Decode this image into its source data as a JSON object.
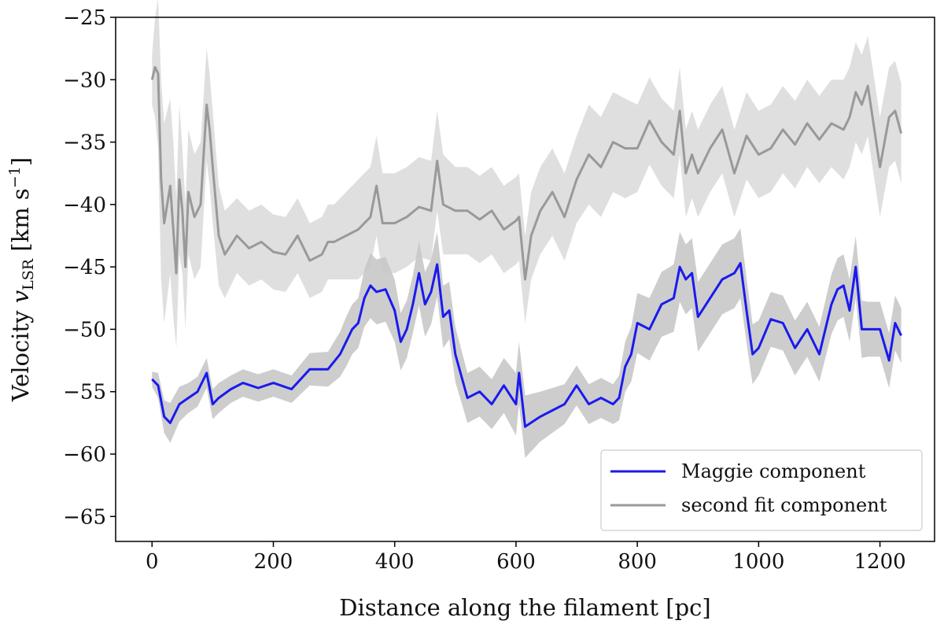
{
  "chart_data": {
    "type": "line",
    "xlabel": "Distance along the filament [pc]",
    "ylabel": {
      "prefix": "Velocity ",
      "var": "v",
      "sub": "LSR",
      "units_open": " [km s",
      "units_exp": "−1",
      "units_close": "]"
    },
    "xlim": [
      -60,
      1290
    ],
    "ylim": [
      -67,
      -25
    ],
    "xticks": [
      0,
      200,
      400,
      600,
      800,
      1000,
      1200
    ],
    "xtick_labels": [
      "0",
      "200",
      "400",
      "600",
      "800",
      "1000",
      "1200"
    ],
    "yticks": [
      -25,
      -30,
      -35,
      -40,
      -45,
      -50,
      -55,
      -60,
      -65
    ],
    "ytick_labels": [
      "−25",
      "−30",
      "−35",
      "−40",
      "−45",
      "−50",
      "−55",
      "−60",
      "−65"
    ],
    "grid": false,
    "legend_position": "lower-right",
    "series": [
      {
        "name": "Maggie component",
        "color": "#1a1aee",
        "band_color": "#c8c8c8",
        "x": [
          0,
          10,
          20,
          30,
          45,
          60,
          75,
          90,
          100,
          110,
          130,
          150,
          175,
          200,
          230,
          260,
          290,
          310,
          320,
          330,
          340,
          350,
          360,
          370,
          385,
          400,
          410,
          420,
          430,
          440,
          450,
          460,
          470,
          480,
          490,
          500,
          520,
          540,
          560,
          580,
          600,
          605,
          615,
          640,
          660,
          680,
          700,
          720,
          740,
          760,
          770,
          780,
          790,
          800,
          820,
          840,
          860,
          870,
          880,
          890,
          900,
          920,
          940,
          960,
          970,
          980,
          990,
          1000,
          1020,
          1040,
          1060,
          1080,
          1100,
          1120,
          1130,
          1140,
          1150,
          1160,
          1170,
          1180,
          1200,
          1215,
          1225,
          1235
        ],
        "y": [
          -54,
          -54.5,
          -57,
          -57.5,
          -56,
          -55.5,
          -55,
          -53.5,
          -56,
          -55.5,
          -54.8,
          -54.3,
          -54.7,
          -54.3,
          -54.8,
          -53.2,
          -53.2,
          -52,
          -51,
          -50,
          -49.5,
          -47.5,
          -46.5,
          -47,
          -46.8,
          -48.5,
          -51,
          -50,
          -48,
          -45.5,
          -48,
          -47,
          -44.8,
          -49,
          -48.5,
          -52,
          -55.5,
          -55,
          -56,
          -54.5,
          -56,
          -53.5,
          -57.8,
          -57,
          -56.5,
          -56,
          -54.5,
          -56,
          -55.5,
          -56,
          -55.5,
          -53,
          -52,
          -49.5,
          -50,
          -48,
          -47.5,
          -45,
          -46,
          -45.5,
          -49,
          -47.5,
          -46,
          -45.5,
          -44.7,
          -48.5,
          -52,
          -51.5,
          -49.2,
          -49.5,
          -51.5,
          -50,
          -52,
          -48,
          -46.8,
          -46.5,
          -48.5,
          -45,
          -50,
          -50,
          -50,
          -52.5,
          -49.5,
          -50.5
        ],
        "band_halfwidth": [
          0.6,
          1,
          1.3,
          1.6,
          1.4,
          1.2,
          1.2,
          1.2,
          1.2,
          1.2,
          1.1,
          1.1,
          1.1,
          1.1,
          1.1,
          1.3,
          1.4,
          1.8,
          2,
          2,
          2,
          2.3,
          2.6,
          2.6,
          2.6,
          2.5,
          2.3,
          2.3,
          2.3,
          2.6,
          2.6,
          2.6,
          2.6,
          2.5,
          2.3,
          2.2,
          2,
          2,
          2,
          2.2,
          2.5,
          2.5,
          2.5,
          2,
          1.8,
          1.6,
          1.6,
          1.6,
          1.6,
          1.6,
          1.8,
          2,
          2.2,
          2.4,
          2.5,
          2.6,
          2.7,
          2.8,
          2.8,
          2.8,
          2.8,
          2.8,
          2.8,
          2.8,
          2.8,
          2.6,
          2.4,
          2.2,
          2.2,
          2.2,
          2.2,
          2.2,
          2.2,
          2.4,
          2.5,
          2.5,
          2.5,
          2.5,
          2.3,
          2.2,
          2.2,
          2.2,
          2.2,
          2.2
        ]
      },
      {
        "name": "second fit component",
        "color": "#999999",
        "band_color": "#dddddd",
        "x": [
          0,
          5,
          10,
          15,
          20,
          30,
          35,
          40,
          45,
          50,
          55,
          60,
          70,
          80,
          90,
          95,
          100,
          110,
          120,
          140,
          160,
          180,
          200,
          220,
          240,
          260,
          280,
          290,
          300,
          320,
          340,
          360,
          370,
          380,
          400,
          420,
          440,
          460,
          470,
          480,
          500,
          520,
          540,
          560,
          580,
          600,
          605,
          615,
          625,
          640,
          660,
          680,
          700,
          720,
          740,
          760,
          780,
          800,
          820,
          840,
          860,
          870,
          880,
          890,
          900,
          920,
          940,
          960,
          980,
          1000,
          1020,
          1040,
          1060,
          1080,
          1100,
          1120,
          1140,
          1150,
          1160,
          1170,
          1180,
          1200,
          1215,
          1225,
          1235
        ],
        "y": [
          -30,
          -29,
          -29.5,
          -38,
          -41.5,
          -38.5,
          -42,
          -45.5,
          -38,
          -40.5,
          -45,
          -39,
          -41,
          -40,
          -32,
          -34,
          -37,
          -42.5,
          -44,
          -42.5,
          -43.5,
          -43,
          -43.8,
          -44,
          -42.5,
          -44.5,
          -44,
          -43,
          -43,
          -42.5,
          -42,
          -41,
          -38.5,
          -41.5,
          -41.5,
          -41,
          -40.2,
          -40.5,
          -36.5,
          -40,
          -40.5,
          -40.5,
          -41.2,
          -40.5,
          -42,
          -41.3,
          -41,
          -46,
          -42.5,
          -40.5,
          -39,
          -41,
          -38,
          -36,
          -37,
          -35,
          -35.5,
          -35.5,
          -33.3,
          -35,
          -36,
          -32.5,
          -37.5,
          -36,
          -37.5,
          -35.5,
          -34,
          -37.5,
          -34.5,
          -36,
          -35.5,
          -34,
          -35.2,
          -33.5,
          -34.8,
          -33.5,
          -34,
          -33,
          -31,
          -32,
          -30.5,
          -37,
          -33,
          -32.5,
          -34.3
        ],
        "band_halfwidth": [
          2,
          4,
          6,
          8,
          8,
          7,
          7,
          6,
          6,
          5,
          5,
          5,
          5,
          5,
          4.5,
          4.5,
          4.5,
          4,
          3.5,
          3,
          3,
          3,
          3,
          3,
          3,
          3,
          3,
          3,
          3,
          3.5,
          4,
          4,
          4,
          4,
          4,
          4,
          4,
          4,
          4,
          4,
          3.5,
          3.5,
          3.5,
          3.5,
          3.5,
          3.5,
          3.5,
          3.5,
          3.5,
          3.5,
          3.5,
          3.5,
          3.5,
          4,
          4,
          4,
          4,
          3.5,
          3.5,
          3.5,
          3.5,
          3.5,
          3.5,
          3.5,
          3.5,
          3.5,
          3.5,
          3.5,
          3.5,
          3.5,
          3.5,
          3.5,
          3.5,
          3.5,
          3.5,
          3.5,
          4,
          4,
          4,
          4,
          4,
          4,
          4,
          4,
          4
        ]
      }
    ]
  }
}
